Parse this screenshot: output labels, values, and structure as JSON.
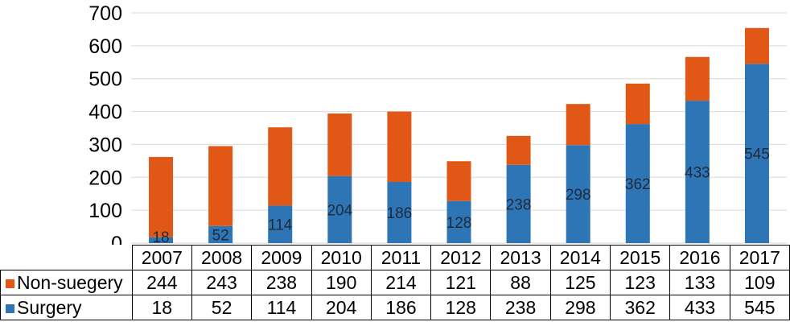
{
  "chart_data": {
    "type": "bar",
    "stacked": true,
    "categories": [
      "2007",
      "2008",
      "2009",
      "2010",
      "2011",
      "2012",
      "2013",
      "2014",
      "2015",
      "2016",
      "2017"
    ],
    "series": [
      {
        "name": "Surgery",
        "color": "#2e75b6",
        "values": [
          18,
          52,
          114,
          204,
          186,
          128,
          238,
          298,
          362,
          433,
          545
        ]
      },
      {
        "name": "Non-suegery",
        "color": "#e05716",
        "values": [
          244,
          243,
          238,
          190,
          214,
          121,
          88,
          125,
          123,
          133,
          109
        ]
      }
    ],
    "yticks": [
      "0",
      "100",
      "200",
      "300",
      "400",
      "500",
      "600",
      "700"
    ],
    "ylim": [
      0,
      700
    ],
    "grid": true,
    "data_labels_series": "Surgery",
    "legend": "data table",
    "title": "",
    "xlabel": "",
    "ylabel": ""
  }
}
